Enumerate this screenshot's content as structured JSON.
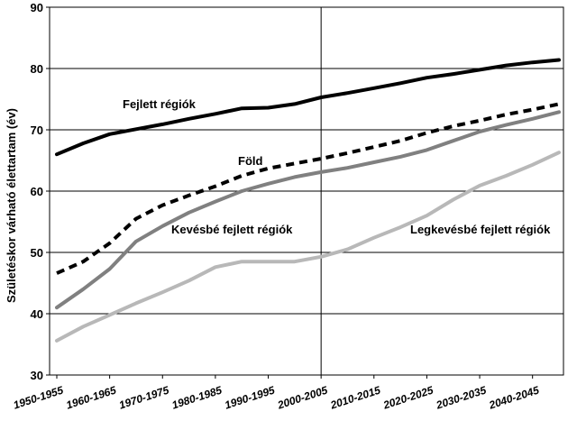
{
  "chart_data": {
    "type": "line",
    "title": "",
    "ylabel": "Születéskor várható élettartam (év)",
    "xlabel": "",
    "ylim": [
      30,
      90
    ],
    "yticks": [
      30,
      40,
      50,
      60,
      70,
      80,
      90
    ],
    "grid": "horizontal",
    "x": [
      "1950-1955",
      "1955-1960",
      "1960-1965",
      "1965-1970",
      "1970-1975",
      "1975-1980",
      "1980-1985",
      "1985-1990",
      "1990-1995",
      "1995-2000",
      "2000-2005",
      "2005-2010",
      "2010-2015",
      "2015-2020",
      "2020-2025",
      "2025-2030",
      "2030-2035",
      "2035-2040",
      "2040-2045",
      "2045-2050"
    ],
    "xtick_labels": [
      "1950-1955",
      "1960-1965",
      "1970-1975",
      "1980-1985",
      "1990-1995",
      "2000-2005",
      "2010-2015",
      "2020-2025",
      "2030-2035",
      "2040-2045"
    ],
    "series": [
      {
        "name": "Fejlett régiók",
        "color": "#000000",
        "dash": "solid",
        "values": [
          66.0,
          67.8,
          69.3,
          70.1,
          70.9,
          71.8,
          72.6,
          73.5,
          73.6,
          74.2,
          75.3,
          76.0,
          76.8,
          77.6,
          78.5,
          79.1,
          79.8,
          80.5,
          81.0,
          81.4
        ]
      },
      {
        "name": "Föld",
        "color": "#000000",
        "dash": "dashed",
        "values": [
          46.6,
          48.5,
          51.5,
          55.5,
          57.7,
          59.3,
          60.8,
          62.5,
          63.7,
          64.5,
          65.3,
          66.2,
          67.2,
          68.2,
          69.5,
          70.6,
          71.5,
          72.5,
          73.3,
          74.2
        ]
      },
      {
        "name": "Kevésbé fejlett régiók",
        "color": "#808080",
        "dash": "solid",
        "values": [
          41.0,
          44.0,
          47.3,
          51.8,
          54.3,
          56.5,
          58.3,
          60.0,
          61.2,
          62.3,
          63.1,
          63.8,
          64.7,
          65.6,
          66.7,
          68.2,
          69.7,
          70.8,
          71.8,
          72.9
        ]
      },
      {
        "name": "Legkevésbé fejlett régiók",
        "color": "#b8b8b8",
        "dash": "solid",
        "values": [
          35.6,
          37.9,
          39.8,
          41.7,
          43.5,
          45.4,
          47.6,
          48.5,
          48.5,
          48.5,
          49.3,
          50.5,
          52.4,
          54.1,
          56.0,
          58.6,
          60.9,
          62.5,
          64.3,
          66.3
        ]
      }
    ]
  }
}
